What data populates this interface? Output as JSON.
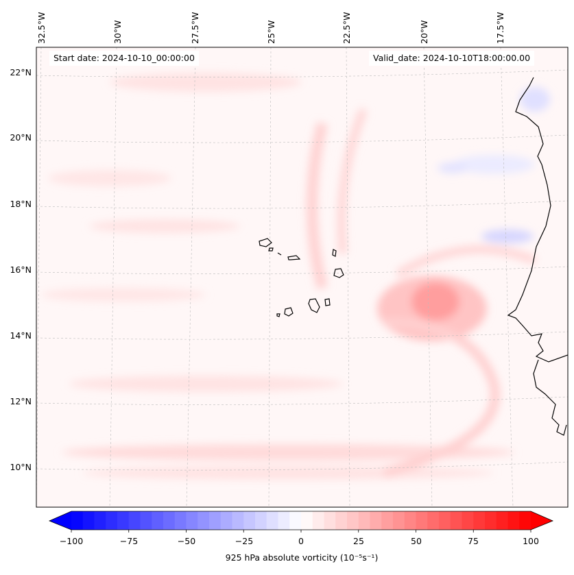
{
  "map": {
    "start_label": "Start date: 2024-10-10_00:00:00",
    "valid_label": "Valid_date: 2024-10-10T18:00:00.00",
    "lon_labels": [
      "32.5°W",
      "30°W",
      "27.5°W",
      "25°W",
      "22.5°W",
      "20°W",
      "17.5°W"
    ],
    "lat_labels": [
      "22°N",
      "20°N",
      "18°N",
      "16°N",
      "14°N",
      "12°N",
      "10°N"
    ],
    "field": "925 hPa absolute vorticity",
    "colormap": "bwr",
    "positive_color": "#ff0000",
    "negative_color": "#0000ff",
    "coast_color": "#000000"
  },
  "colorbar": {
    "min": -100,
    "max": 100,
    "ticks": [
      "−100",
      "−75",
      "−50",
      "−25",
      "0",
      "25",
      "50",
      "75",
      "100"
    ],
    "label": "925 hPa absolute vorticity (10⁻⁵s⁻¹)"
  }
}
